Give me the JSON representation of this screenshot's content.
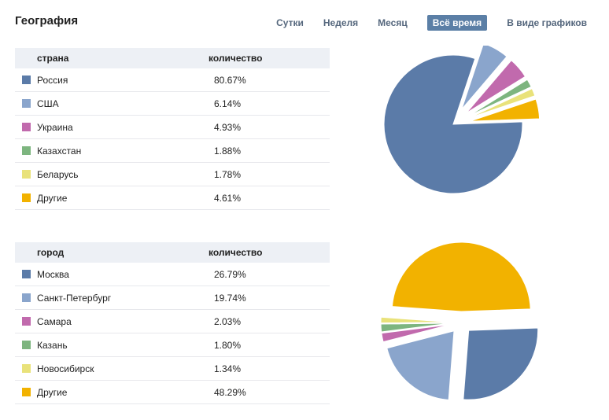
{
  "header": {
    "title": "География",
    "tabs": [
      {
        "label": "Сутки",
        "active": false
      },
      {
        "label": "Неделя",
        "active": false
      },
      {
        "label": "Месяц",
        "active": false
      },
      {
        "label": "Всё время",
        "active": true
      },
      {
        "label": "В виде графиков",
        "active": false
      }
    ]
  },
  "countries": {
    "col_name": "страна",
    "col_count": "количество",
    "rows": [
      {
        "name": "Россия",
        "value": "80.67%",
        "color": "#5b7ba8"
      },
      {
        "name": "США",
        "value": "6.14%",
        "color": "#8aa5cc"
      },
      {
        "name": "Украина",
        "value": "4.93%",
        "color": "#c16aad"
      },
      {
        "name": "Казахстан",
        "value": "1.88%",
        "color": "#7db57f"
      },
      {
        "name": "Беларусь",
        "value": "1.78%",
        "color": "#e9e27a"
      },
      {
        "name": "Другие",
        "value": "4.61%",
        "color": "#f2b200"
      }
    ]
  },
  "cities": {
    "col_name": "город",
    "col_count": "количество",
    "rows": [
      {
        "name": "Москва",
        "value": "26.79%",
        "color": "#5b7ba8"
      },
      {
        "name": "Санкт-Петербург",
        "value": "19.74%",
        "color": "#8aa5cc"
      },
      {
        "name": "Самара",
        "value": "2.03%",
        "color": "#c16aad"
      },
      {
        "name": "Казань",
        "value": "1.80%",
        "color": "#7db57f"
      },
      {
        "name": "Новосибирск",
        "value": "1.34%",
        "color": "#e9e27a"
      },
      {
        "name": "Другие",
        "value": "48.29%",
        "color": "#f2b200"
      }
    ]
  },
  "chart_data": [
    {
      "type": "pie",
      "title": "страна",
      "categories": [
        "Россия",
        "США",
        "Украина",
        "Казахстан",
        "Беларусь",
        "Другие"
      ],
      "values": [
        80.67,
        6.14,
        4.93,
        1.88,
        1.78,
        4.61
      ],
      "colors": [
        "#5b7ba8",
        "#8aa5cc",
        "#c16aad",
        "#7db57f",
        "#e9e27a",
        "#f2b200"
      ]
    },
    {
      "type": "pie",
      "title": "город",
      "categories": [
        "Москва",
        "Санкт-Петербург",
        "Самара",
        "Казань",
        "Новосибирск",
        "Другие"
      ],
      "values": [
        26.79,
        19.74,
        2.03,
        1.8,
        1.34,
        48.29
      ],
      "colors": [
        "#5b7ba8",
        "#8aa5cc",
        "#c16aad",
        "#7db57f",
        "#e9e27a",
        "#f2b200"
      ]
    }
  ]
}
